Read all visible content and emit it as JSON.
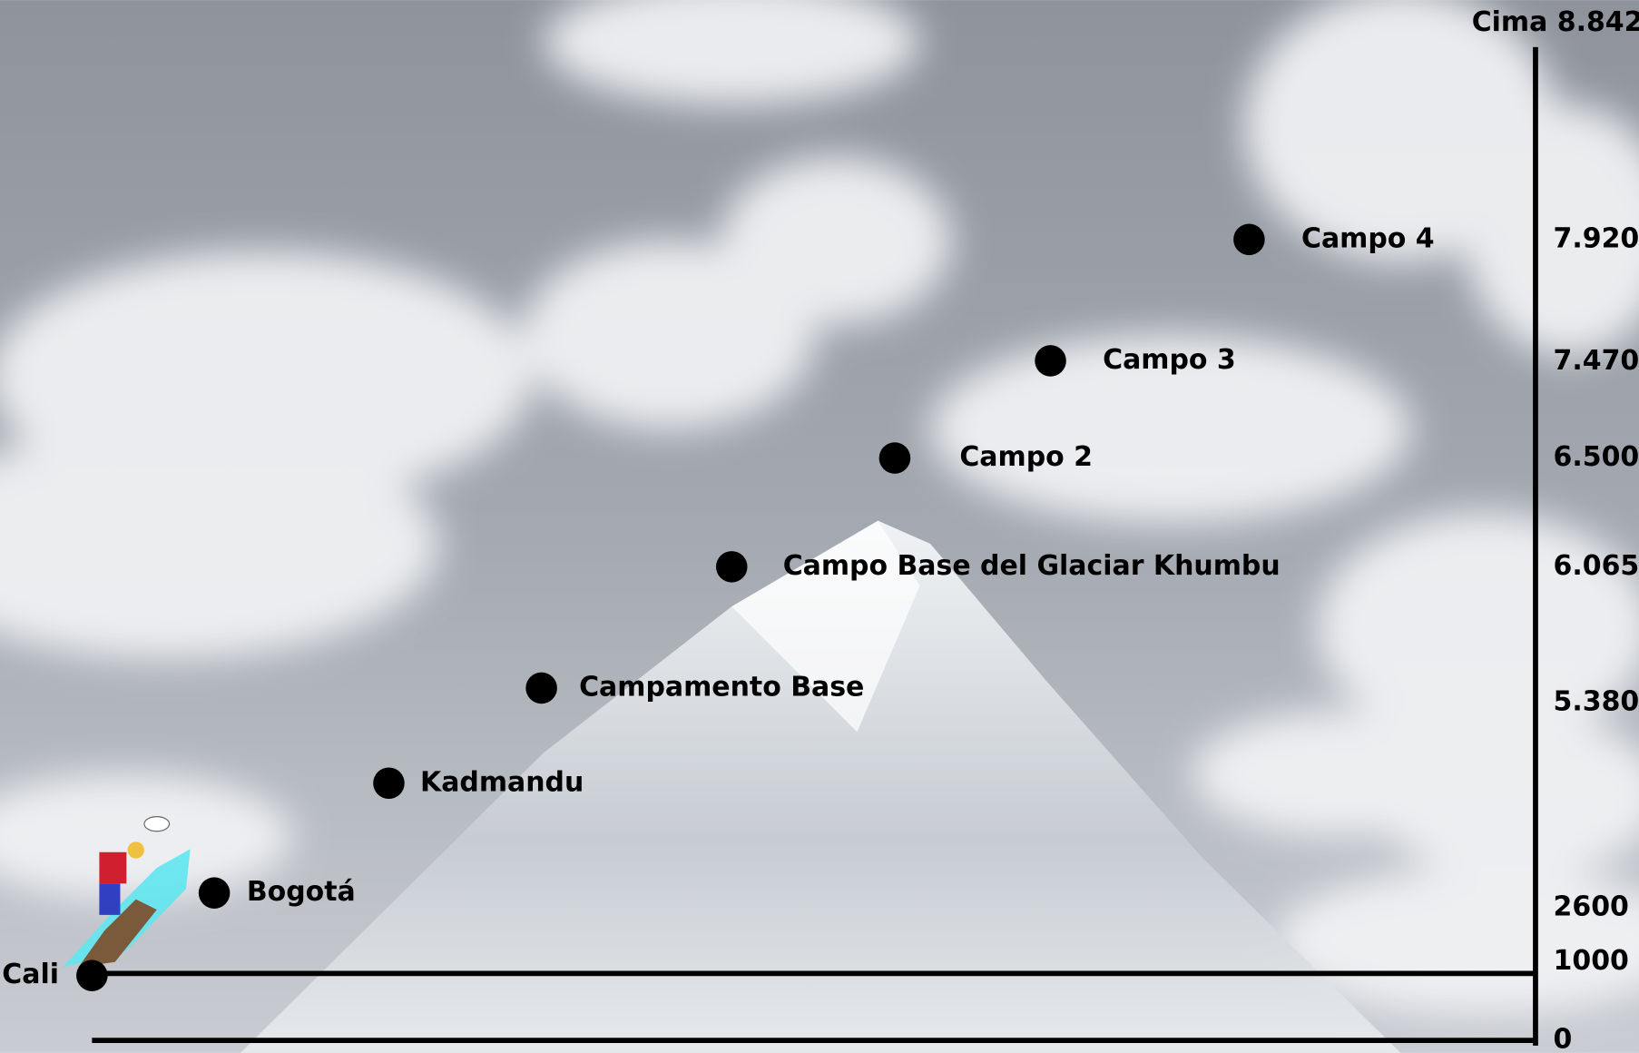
{
  "axis": {
    "top_label": "Cima 8.842",
    "labels": [
      "7.920",
      "7.470",
      "6.500",
      "6.065",
      "5.380",
      "2600",
      "1000",
      "0"
    ]
  },
  "stops": [
    "Cali",
    "Bogotá",
    "Kadmandu",
    "Campamento Base",
    "Campo Base del Glaciar Khumbu",
    "Campo 2",
    "Campo 3",
    "Campo 4"
  ]
}
